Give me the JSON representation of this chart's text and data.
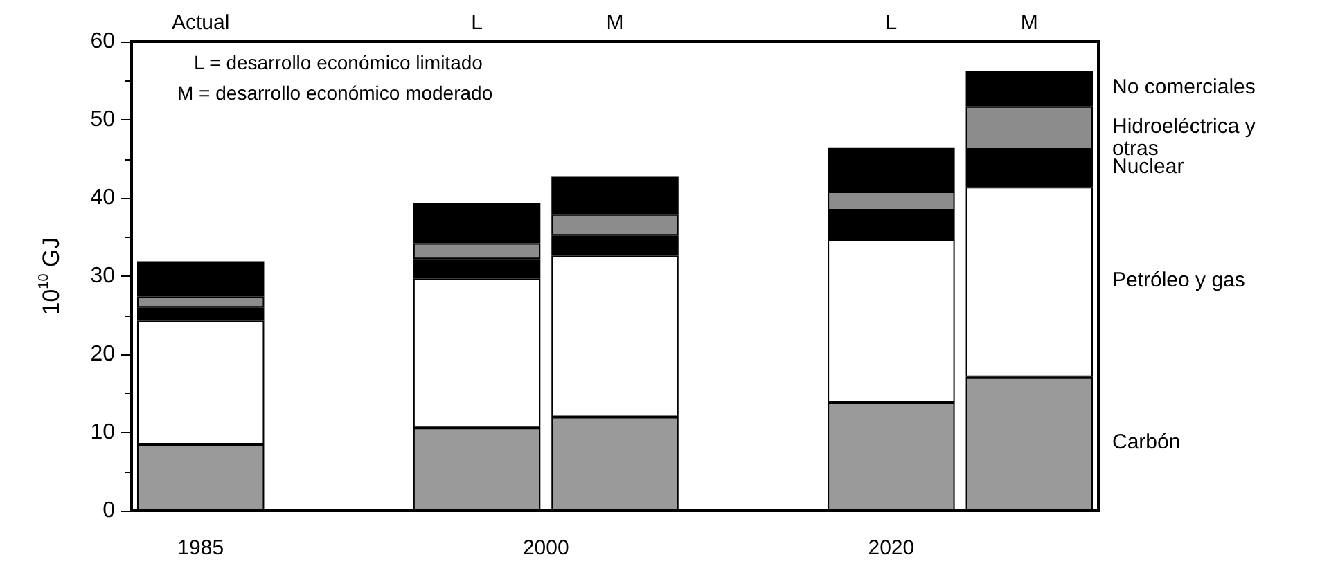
{
  "chart_data": {
    "type": "bar",
    "stacked": true,
    "ylabel": "10$^{10}$ GJ",
    "categories": [
      "Actual",
      null,
      "L",
      "M",
      null,
      "L",
      "M"
    ],
    "series": [
      {
        "name": "Carbón",
        "color": "#9a9a9a",
        "values": [
          8.5,
          null,
          10.6,
          12.0,
          null,
          13.8,
          17.1
        ]
      },
      {
        "name": "Petróleo y gas",
        "color": "#ffffff",
        "values": [
          15.8,
          null,
          19.1,
          20.6,
          null,
          20.9,
          24.3
        ]
      },
      {
        "name": "Nuclear",
        "color": "#000000",
        "values": [
          1.7,
          null,
          2.5,
          2.6,
          null,
          3.7,
          4.8
        ]
      },
      {
        "name": "Hidroeléctrica y otras",
        "color": "#8c8c8c",
        "values": [
          1.4,
          null,
          2.0,
          2.7,
          null,
          2.4,
          5.5
        ]
      },
      {
        "name": "No comerciales",
        "color": "#000000",
        "values": [
          4.5,
          null,
          5.1,
          4.8,
          null,
          5.6,
          4.5
        ]
      }
    ],
    "ylim": [
      0,
      60
    ],
    "yticks": [
      0,
      10,
      20,
      30,
      40,
      50,
      60
    ],
    "grid": false,
    "legend": false,
    "annotations": [
      "L = desarrollo económico limitado",
      "M = desarrollo económico moderado",
      "1985",
      "2000",
      "2020"
    ]
  }
}
